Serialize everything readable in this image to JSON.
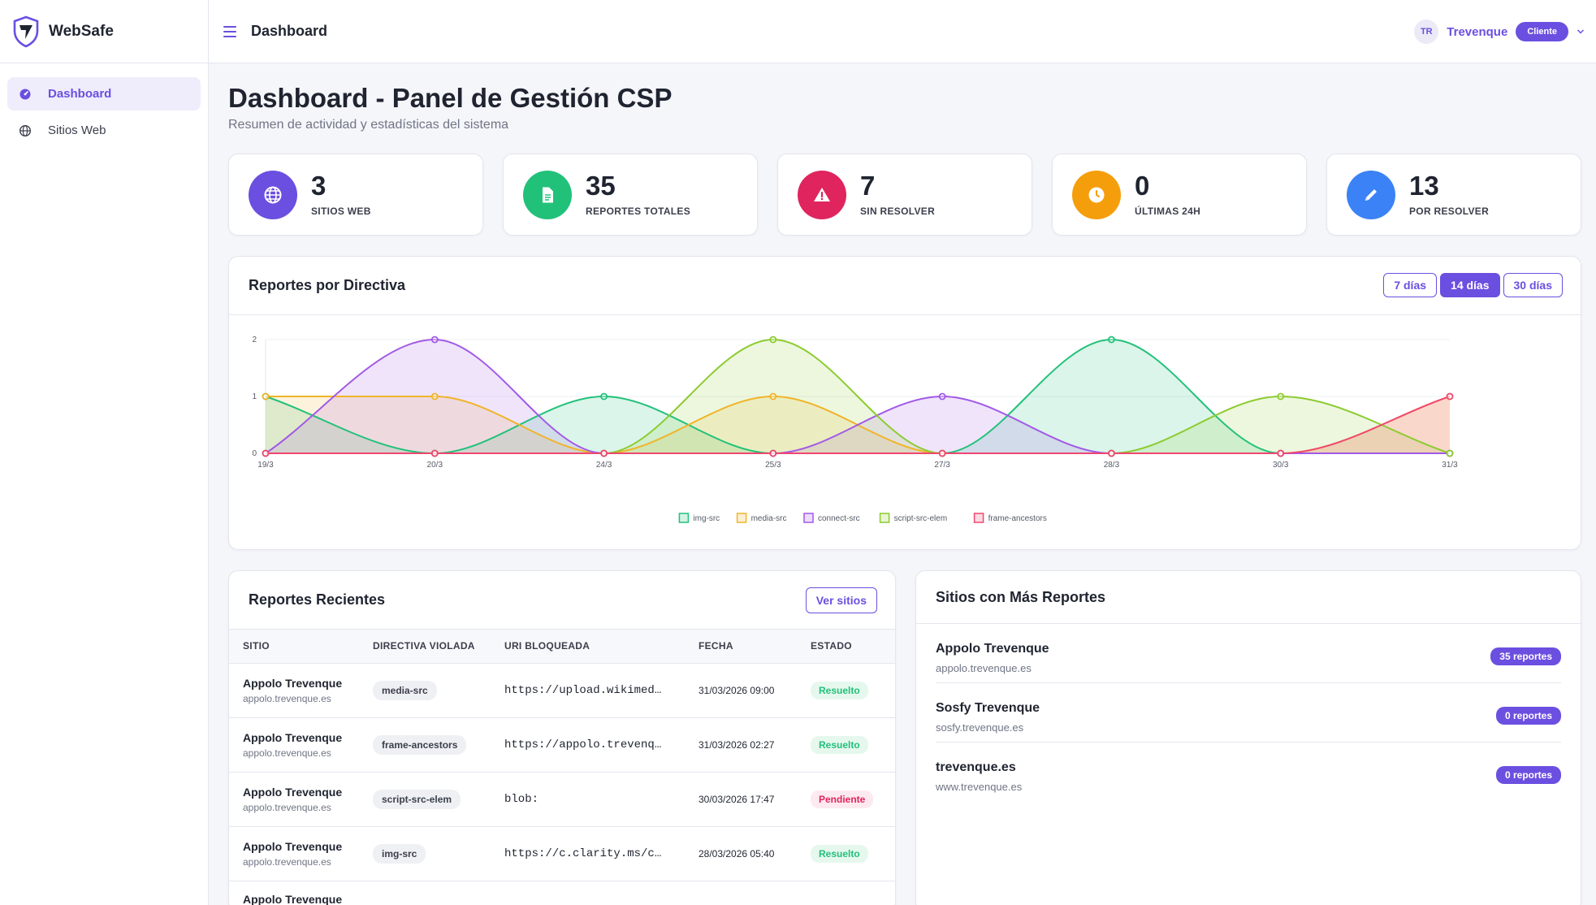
{
  "brand": {
    "name": "WebSafe"
  },
  "sidebar": {
    "items": [
      {
        "label": "Dashboard",
        "icon": "gauge-icon",
        "active": true
      },
      {
        "label": "Sitios Web",
        "icon": "globe-icon",
        "active": false
      }
    ]
  },
  "header": {
    "title": "Dashboard",
    "user": {
      "initials": "TR",
      "name": "Trevenque",
      "role": "Cliente"
    }
  },
  "page": {
    "title": "Dashboard - Panel de Gestión CSP",
    "subtitle": "Resumen de actividad y estadísticas del sistema"
  },
  "stats": [
    {
      "value": "3",
      "label": "SITIOS WEB",
      "color": "#6b4fe0",
      "icon": "globe-icon"
    },
    {
      "value": "35",
      "label": "REPORTES TOTALES",
      "color": "#22c17a",
      "icon": "document-icon"
    },
    {
      "value": "7",
      "label": "SIN RESOLVER",
      "color": "#e0245e",
      "icon": "warning-icon"
    },
    {
      "value": "0",
      "label": "ÚLTIMAS 24H",
      "color": "#f59e0b",
      "icon": "clock-icon"
    },
    {
      "value": "13",
      "label": "POR RESOLVER",
      "color": "#3b82f6",
      "icon": "pencil-icon"
    }
  ],
  "directive_chart": {
    "title": "Reportes por Directiva",
    "ranges": [
      {
        "label": "7 días",
        "active": false
      },
      {
        "label": "14 días",
        "active": true
      },
      {
        "label": "30 días",
        "active": false
      }
    ]
  },
  "chart_data": {
    "type": "area",
    "title": "",
    "categories": [
      "19/3",
      "20/3",
      "24/3",
      "25/3",
      "27/3",
      "28/3",
      "30/3",
      "31/3"
    ],
    "y_ticks": [
      "0",
      "1",
      "2"
    ],
    "ylim": [
      0,
      2
    ],
    "series": [
      {
        "name": "img-src",
        "color": "#22c17a",
        "values": [
          1,
          0,
          1,
          0,
          0,
          2,
          0,
          0
        ]
      },
      {
        "name": "media-src",
        "color": "#f0b429",
        "values": [
          1,
          1,
          0,
          1,
          0,
          0,
          0,
          1
        ]
      },
      {
        "name": "connect-src",
        "color": "#a259e6",
        "values": [
          0,
          2,
          0,
          0,
          1,
          0,
          0,
          0
        ]
      },
      {
        "name": "script-src-elem",
        "color": "#8ccb2f",
        "values": [
          0,
          0,
          0,
          2,
          0,
          0,
          1,
          0
        ]
      },
      {
        "name": "frame-ancestors",
        "color": "#ef4770",
        "values": [
          0,
          0,
          0,
          0,
          0,
          0,
          0,
          1
        ]
      }
    ],
    "legend_position": "bottom",
    "grid": true
  },
  "recent_reports": {
    "title": "Reportes Recientes",
    "button_label": "Ver sitios",
    "columns": [
      "SITIO",
      "DIRECTIVA VIOLADA",
      "URI BLOQUEADA",
      "FECHA",
      "ESTADO"
    ],
    "rows": [
      {
        "site": "Appolo Trevenque",
        "domain": "appolo.trevenque.es",
        "directive": "media-src",
        "uri": "https://upload.wikimed…",
        "date": "31/03/2026 09:00",
        "status": "Resuelto",
        "status_type": "ok"
      },
      {
        "site": "Appolo Trevenque",
        "domain": "appolo.trevenque.es",
        "directive": "frame-ancestors",
        "uri": "https://appolo.trevenq…",
        "date": "31/03/2026 02:27",
        "status": "Resuelto",
        "status_type": "ok"
      },
      {
        "site": "Appolo Trevenque",
        "domain": "appolo.trevenque.es",
        "directive": "script-src-elem",
        "uri": "blob:",
        "date": "30/03/2026 17:47",
        "status": "Pendiente",
        "status_type": "pend"
      },
      {
        "site": "Appolo Trevenque",
        "domain": "appolo.trevenque.es",
        "directive": "img-src",
        "uri": "https://c.clarity.ms/c…",
        "date": "28/03/2026 05:40",
        "status": "Resuelto",
        "status_type": "ok"
      },
      {
        "site": "Appolo Trevenque",
        "domain": "",
        "directive": "",
        "uri": "",
        "date": "",
        "status": "",
        "status_type": "ok"
      }
    ]
  },
  "top_sites": {
    "title": "Sitios con Más Reportes",
    "items": [
      {
        "name": "Appolo Trevenque",
        "domain": "appolo.trevenque.es",
        "count": "35 reportes"
      },
      {
        "name": "Sosfy Trevenque",
        "domain": "sosfy.trevenque.es",
        "count": "0 reportes"
      },
      {
        "name": "trevenque.es",
        "domain": "www.trevenque.es",
        "count": "0 reportes"
      }
    ]
  }
}
